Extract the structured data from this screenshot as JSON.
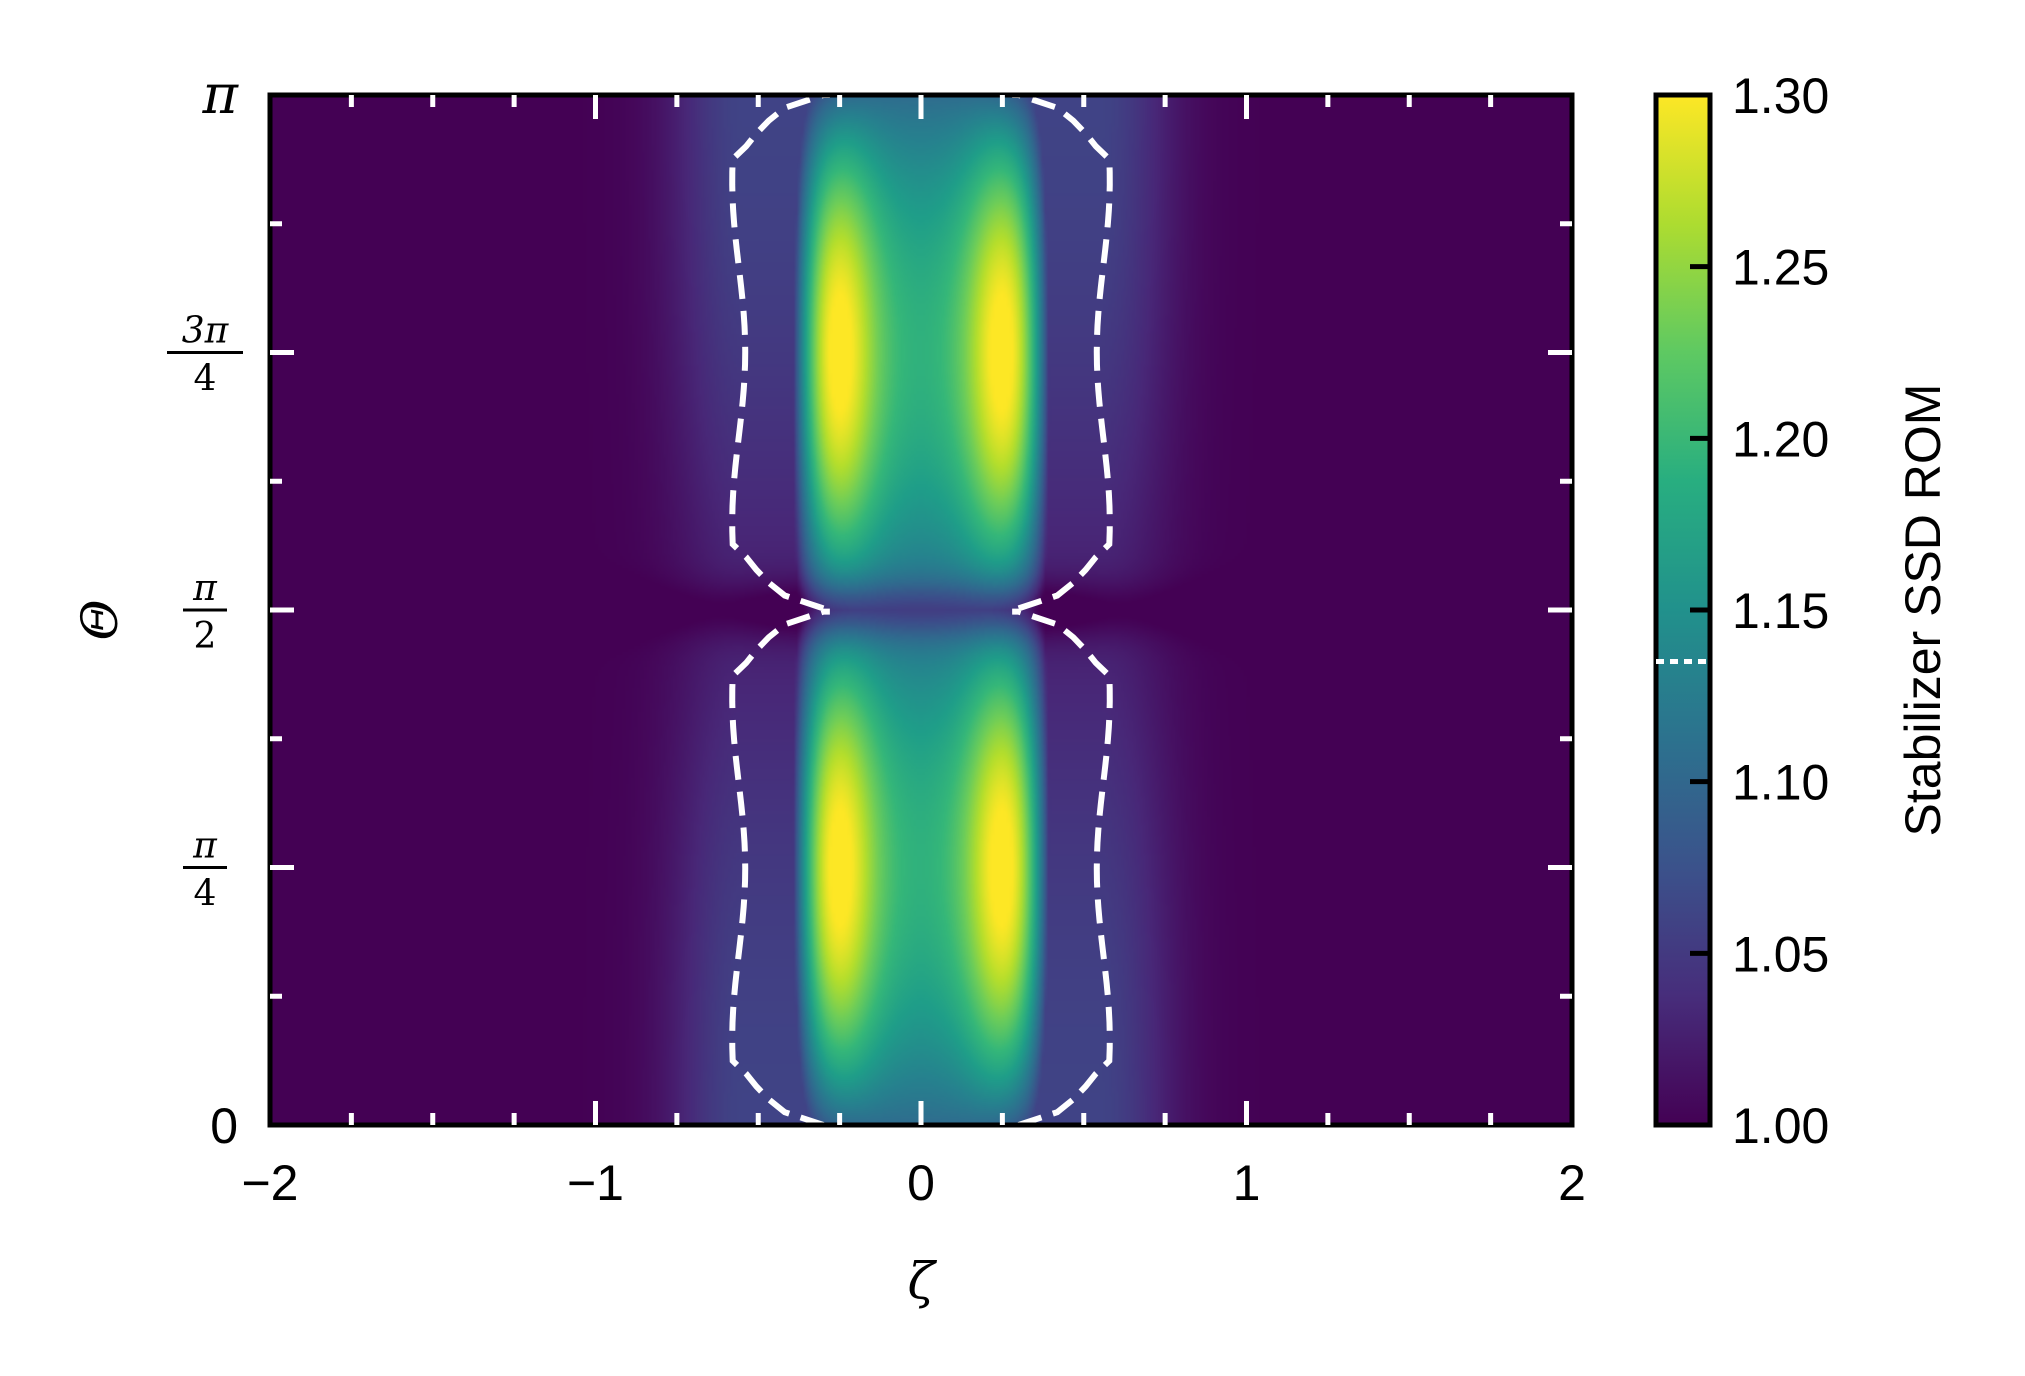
{
  "chart_data": {
    "type": "heatmap",
    "xlabel": "ζ",
    "ylabel": "Θ",
    "xlim": [
      -2,
      2
    ],
    "ylim": [
      0,
      3.14159
    ],
    "x_ticks": [
      {
        "value": -2,
        "label": "−2"
      },
      {
        "value": -1,
        "label": "−1"
      },
      {
        "value": 0,
        "label": "0"
      },
      {
        "value": 1,
        "label": "1"
      },
      {
        "value": 2,
        "label": "2"
      }
    ],
    "y_ticks": [
      {
        "value": 0,
        "label": "0"
      },
      {
        "value": 0.7854,
        "num": "π",
        "den": "4"
      },
      {
        "value": 1.5708,
        "num": "π",
        "den": "2"
      },
      {
        "value": 2.3562,
        "num": "3π",
        "den": "4"
      },
      {
        "value": 3.14159,
        "label": "π"
      }
    ],
    "colormap": "viridis",
    "colorbar": {
      "label": "Stabilizer SSD ROM",
      "range": [
        1.0,
        1.3
      ],
      "ticks": [
        "1.00",
        "1.05",
        "1.10",
        "1.15",
        "1.20",
        "1.25",
        "1.30"
      ],
      "contour_level": 1.135
    },
    "peaks": [
      {
        "zeta": -0.27,
        "theta": 0.785,
        "value": 1.3
      },
      {
        "zeta": 0.27,
        "theta": 0.785,
        "value": 1.3
      },
      {
        "zeta": -0.27,
        "theta": 2.356,
        "value": 1.3
      },
      {
        "zeta": 0.27,
        "theta": 2.356,
        "value": 1.3
      }
    ],
    "contour": {
      "style": "dashed",
      "color": "#ffffff",
      "description_level": 1.135
    }
  }
}
